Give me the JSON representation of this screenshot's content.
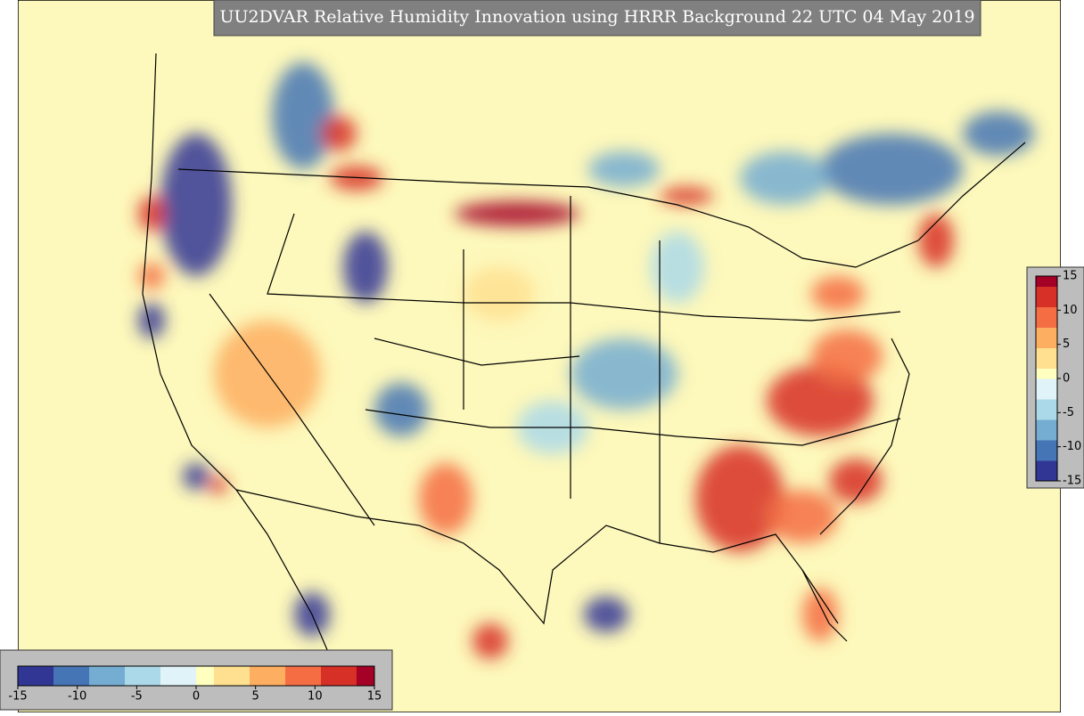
{
  "title": "UU2DVAR Relative Humidity Innovation using HRRR Background 22 UTC 04 May 2019",
  "colorbars": [
    {
      "orientation": "horizontal",
      "range": [
        -15,
        15
      ],
      "ticks": [
        -15,
        -10,
        -5,
        0,
        5,
        10,
        15
      ]
    },
    {
      "orientation": "vertical",
      "range": [
        -15,
        15
      ],
      "ticks": [
        -15,
        -10,
        -5,
        0,
        5,
        10,
        15
      ]
    }
  ],
  "colormap": [
    "#313695",
    "#4575b4",
    "#74add1",
    "#abd9e9",
    "#e0f3f8",
    "#ffffbf",
    "#fee090",
    "#fdae61",
    "#f46d43",
    "#d73027",
    "#a50026"
  ]
}
